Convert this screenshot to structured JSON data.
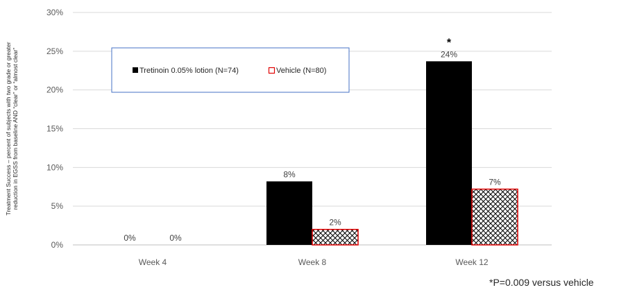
{
  "chart_data": {
    "type": "bar",
    "categories": [
      "Week 4",
      "Week 8",
      "Week 12"
    ],
    "series": [
      {
        "name": "Tretinoin 0.05% lotion (N=74)",
        "values": [
          0,
          8.2,
          23.7
        ],
        "labels": [
          "0%",
          "8%",
          "24%"
        ],
        "color": "#000000"
      },
      {
        "name": "Vehicle (N=80)",
        "values": [
          0,
          2.0,
          7.2
        ],
        "labels": [
          "0%",
          "2%",
          "7%"
        ],
        "color": "#ffffff",
        "stroke": "#e00000",
        "pattern": "crosshatch"
      }
    ],
    "ylim": [
      0,
      30
    ],
    "yticks": [
      "0%",
      "5%",
      "10%",
      "15%",
      "20%",
      "25%",
      "30%"
    ],
    "ylabel_lines": [
      "Treatment Success – percent of subjects with two grade or greater",
      "reduction in EGSS from baseline AND “clear” or “almost clear”"
    ],
    "xlabel": "",
    "grid": true,
    "legend_position": "top-left",
    "significance_marker": {
      "category": "Week 12",
      "series": 0,
      "symbol": "*"
    },
    "footnote": "*P=0.009 versus vehicle"
  }
}
